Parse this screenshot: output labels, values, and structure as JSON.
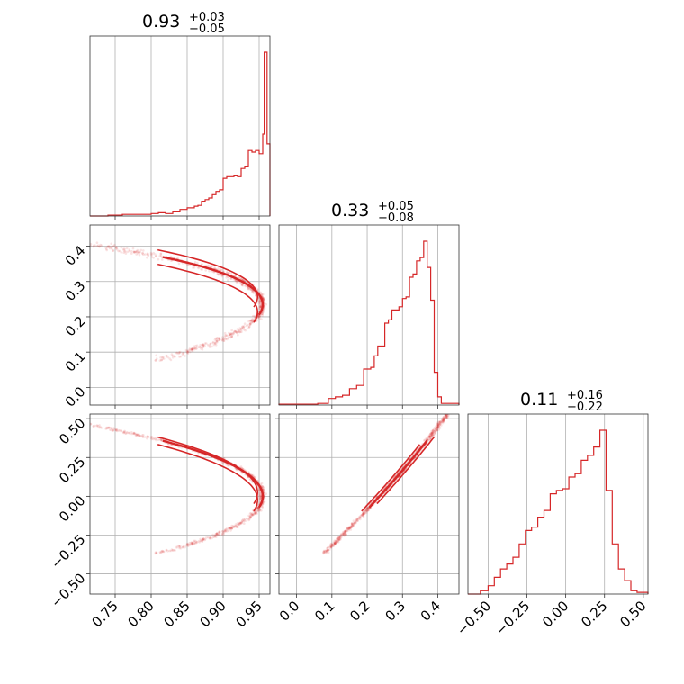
{
  "chart_data": {
    "type": "corner",
    "color": "#d62728",
    "grid": true,
    "parameters": [
      {
        "title": {
          "median": "0.93",
          "plus": "+0.03",
          "minus": "−0.05"
        },
        "range": [
          0.715,
          0.965
        ],
        "ticks": [
          0.75,
          0.8,
          0.85,
          0.9,
          0.95
        ],
        "tick_labels": [
          "0.75",
          "0.80",
          "0.85",
          "0.90",
          "0.95"
        ],
        "hist_edges": [
          0.715,
          0.74,
          0.76,
          0.78,
          0.79,
          0.8,
          0.81,
          0.82,
          0.83,
          0.84,
          0.85,
          0.86,
          0.865,
          0.87,
          0.875,
          0.88,
          0.885,
          0.89,
          0.895,
          0.9,
          0.905,
          0.91,
          0.915,
          0.92,
          0.925,
          0.93,
          0.935,
          0.94,
          0.945,
          0.95,
          0.955,
          0.957,
          0.959,
          0.961,
          0.963,
          0.965
        ],
        "hist_counts": [
          0,
          0.005,
          0.01,
          0.01,
          0.01,
          0.015,
          0.02,
          0.015,
          0.025,
          0.04,
          0.05,
          0.06,
          0.065,
          0.09,
          0.1,
          0.11,
          0.13,
          0.15,
          0.16,
          0.23,
          0.24,
          0.24,
          0.245,
          0.24,
          0.29,
          0.3,
          0.4,
          0.39,
          0.4,
          0.38,
          0.5,
          1.0,
          1.0,
          0.44,
          0.44
        ]
      },
      {
        "title": {
          "median": "0.33",
          "plus": "+0.05",
          "minus": "−0.08"
        },
        "range": [
          -0.05,
          0.46
        ],
        "ticks": [
          0.0,
          0.1,
          0.2,
          0.3,
          0.4
        ],
        "tick_labels": [
          "0.0",
          "0.1",
          "0.2",
          "0.3",
          "0.4"
        ],
        "y_tick_labels": [
          "0.0",
          "0.1",
          "0.2",
          "0.3",
          "0.4"
        ],
        "hist_edges": [
          -0.05,
          0.06,
          0.09,
          0.11,
          0.13,
          0.15,
          0.17,
          0.19,
          0.21,
          0.22,
          0.23,
          0.24,
          0.25,
          0.26,
          0.27,
          0.28,
          0.29,
          0.3,
          0.31,
          0.32,
          0.33,
          0.34,
          0.35,
          0.36,
          0.37,
          0.38,
          0.39,
          0.4,
          0.41,
          0.42,
          0.46
        ],
        "hist_counts": [
          0.005,
          0.01,
          0.04,
          0.05,
          0.06,
          0.1,
          0.12,
          0.22,
          0.23,
          0.3,
          0.36,
          0.36,
          0.5,
          0.52,
          0.58,
          0.58,
          0.6,
          0.65,
          0.66,
          0.78,
          0.8,
          0.88,
          0.9,
          1.0,
          0.84,
          0.64,
          0.2,
          0.05,
          0.01,
          0.01
        ]
      },
      {
        "title": {
          "median": "0.11",
          "plus": "+0.16",
          "minus": "−0.22"
        },
        "range": [
          -0.63,
          0.53
        ],
        "ticks": [
          -0.5,
          -0.25,
          0.0,
          0.25,
          0.5
        ],
        "tick_labels": [
          "−0.50",
          "−0.25",
          "0.00",
          "0.25",
          "0.50"
        ],
        "y_tick_labels": [
          "−0.50",
          "−0.25",
          "0.00",
          "0.25",
          "0.50"
        ],
        "hist_edges": [
          -0.63,
          -0.55,
          -0.5,
          -0.46,
          -0.42,
          -0.38,
          -0.34,
          -0.3,
          -0.26,
          -0.22,
          -0.18,
          -0.14,
          -0.1,
          -0.06,
          -0.02,
          0.02,
          0.06,
          0.1,
          0.14,
          0.18,
          0.22,
          0.26,
          0.3,
          0.34,
          0.38,
          0.42,
          0.46,
          0.53
        ],
        "hist_counts": [
          0,
          0.02,
          0.05,
          0.1,
          0.15,
          0.18,
          0.22,
          0.3,
          0.38,
          0.4,
          0.46,
          0.5,
          0.6,
          0.62,
          0.63,
          0.7,
          0.72,
          0.8,
          0.83,
          0.88,
          0.98,
          0.62,
          0.3,
          0.15,
          0.08,
          0.02,
          0.01
        ]
      }
    ]
  }
}
